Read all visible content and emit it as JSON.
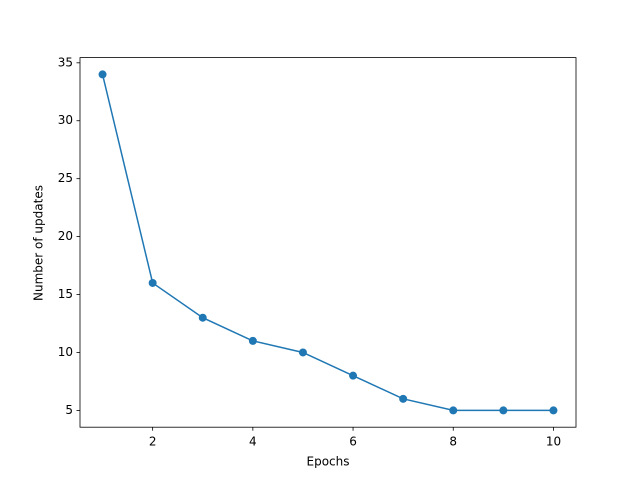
{
  "chart_data": {
    "type": "line",
    "xlabel": "Epochs",
    "ylabel": "Number of updates",
    "x": [
      1,
      2,
      3,
      4,
      5,
      6,
      7,
      8,
      9,
      10
    ],
    "series": [
      {
        "name": "updates",
        "color": "#1f77b4",
        "values": [
          34,
          16,
          13,
          11,
          10,
          8,
          6,
          5,
          5,
          5
        ]
      }
    ],
    "xlim": [
      0.55,
      10.45
    ],
    "xticks": [
      2,
      4,
      6,
      8,
      10
    ],
    "ylim": [
      3.55,
      35.45
    ],
    "yticks": [
      5,
      10,
      15,
      20,
      25,
      30,
      35
    ],
    "grid": false,
    "markers": true
  }
}
